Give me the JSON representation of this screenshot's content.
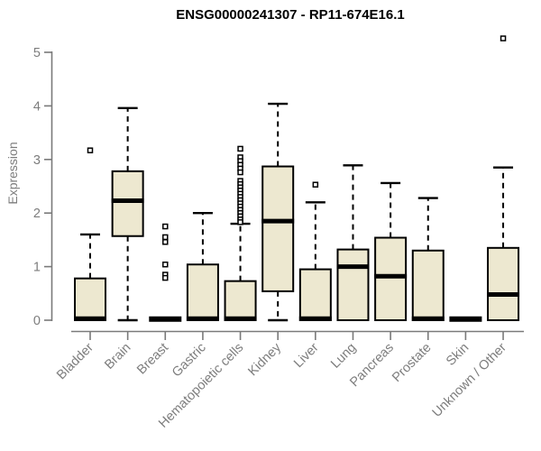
{
  "colors": {
    "background": "#ffffff",
    "box_fill": "#EDE8D0",
    "box_stroke": "#000000",
    "median": "#000000",
    "whisker": "#000000",
    "outlier_stroke": "#000000",
    "outlier_fill": "#ffffff",
    "axis": "#7a7a7a",
    "tick_label": "#7d7d7d",
    "title": "#000000"
  },
  "chart_data": {
    "type": "boxplot",
    "title": "ENSG00000241307 - RP11-674E16.1",
    "xlabel": "",
    "ylabel": "Expression",
    "ylim": [
      0,
      5
    ],
    "yticks": [
      0,
      1,
      2,
      3,
      4,
      5
    ],
    "grid": false,
    "legend": "none",
    "categories": [
      "Bladder",
      "Brain",
      "Breast",
      "Gastric",
      "Hematopoietic cells",
      "Kidney",
      "Liver",
      "Lung",
      "Pancreas",
      "Prostate",
      "Skin",
      "Unknown / Other"
    ],
    "series": [
      {
        "name": "Bladder",
        "whisker_low": 0,
        "q1": 0,
        "median": 0.03,
        "q3": 0.78,
        "whisker_high": 1.6,
        "outliers": [
          3.17
        ]
      },
      {
        "name": "Brain",
        "whisker_low": 0,
        "q1": 1.57,
        "median": 2.23,
        "q3": 2.78,
        "whisker_high": 3.96,
        "outliers": []
      },
      {
        "name": "Breast",
        "whisker_low": 0,
        "q1": 0,
        "median": 0.02,
        "q3": 0,
        "whisker_high": 0,
        "outliers": [
          1.75,
          1.55,
          1.46,
          1.04,
          0.85,
          0.79
        ]
      },
      {
        "name": "Gastric",
        "whisker_low": 0,
        "q1": 0,
        "median": 0.03,
        "q3": 1.04,
        "whisker_high": 2.0,
        "outliers": []
      },
      {
        "name": "Hematopoietic cells",
        "whisker_low": 0,
        "q1": 0,
        "median": 0.03,
        "q3": 0.73,
        "whisker_high": 1.8,
        "outliers": [
          3.2,
          3.04,
          2.97,
          2.9,
          2.83,
          2.76,
          2.6,
          2.54,
          2.48,
          2.42,
          2.36,
          2.3,
          2.24,
          2.18,
          2.12,
          2.06,
          2.0,
          1.94,
          1.88,
          1.83
        ]
      },
      {
        "name": "Kidney",
        "whisker_low": 0,
        "q1": 0.54,
        "median": 1.85,
        "q3": 2.87,
        "whisker_high": 4.04,
        "outliers": []
      },
      {
        "name": "Liver",
        "whisker_low": 0,
        "q1": 0,
        "median": 0.03,
        "q3": 0.95,
        "whisker_high": 2.2,
        "outliers": [
          2.53
        ]
      },
      {
        "name": "Lung",
        "whisker_low": 0,
        "q1": 0,
        "median": 1.0,
        "q3": 1.32,
        "whisker_high": 2.89,
        "outliers": []
      },
      {
        "name": "Pancreas",
        "whisker_low": 0,
        "q1": 0,
        "median": 0.82,
        "q3": 1.54,
        "whisker_high": 2.56,
        "outliers": []
      },
      {
        "name": "Prostate",
        "whisker_low": 0,
        "q1": 0,
        "median": 0.03,
        "q3": 1.3,
        "whisker_high": 2.28,
        "outliers": []
      },
      {
        "name": "Skin",
        "whisker_low": 0,
        "q1": 0,
        "median": 0.02,
        "q3": 0,
        "whisker_high": 0,
        "outliers": []
      },
      {
        "name": "Unknown / Other",
        "whisker_low": 0,
        "q1": 0,
        "median": 0.48,
        "q3": 1.35,
        "whisker_high": 2.85,
        "outliers": [
          5.26
        ]
      }
    ]
  }
}
